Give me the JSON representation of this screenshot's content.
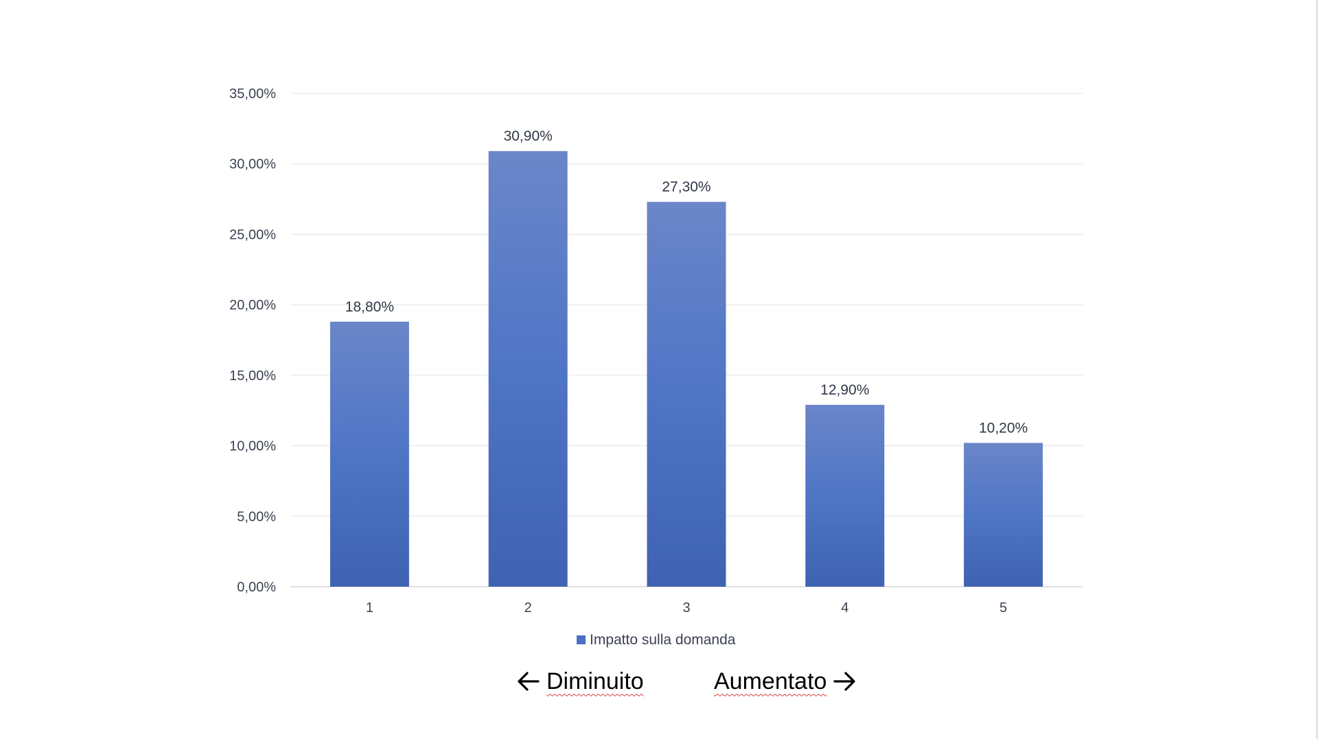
{
  "colors": {
    "bar_top": "#6b86c9",
    "bar_middle": "#4f75c5",
    "bar_bottom": "#3f62b2",
    "legend_swatch": "#4a70c4",
    "gridline": "#e3e3e3",
    "axis": "#d6d6d6"
  },
  "chart_data": {
    "type": "bar",
    "categories": [
      "1",
      "2",
      "3",
      "4",
      "5"
    ],
    "series": [
      {
        "name": "Impatto sulla domanda",
        "values": [
          18.8,
          30.9,
          27.3,
          12.9,
          10.2
        ],
        "labels": [
          "18,80%",
          "30,90%",
          "27,30%",
          "12,90%",
          "10,20%"
        ]
      }
    ],
    "yticks": [
      "0,00%",
      "5,00%",
      "10,00%",
      "15,00%",
      "20,00%",
      "25,00%",
      "30,00%",
      "35,00%"
    ],
    "ylim": [
      0,
      35
    ],
    "grid": true,
    "legend_position": "bottom"
  },
  "annotations": {
    "left_text": "Diminuito",
    "left_icon": "arrow-left-icon",
    "right_text": "Aumentato",
    "right_icon": "arrow-right-icon"
  }
}
